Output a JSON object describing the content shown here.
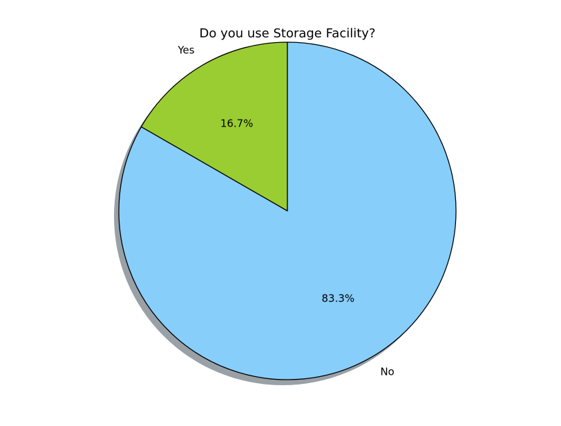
{
  "chart_data": {
    "type": "pie",
    "title": "Do you use Storage Facility?",
    "slices": [
      {
        "label": "Yes",
        "value": 16.7,
        "pct_label": "16.7%",
        "color": "#9ACD32"
      },
      {
        "label": "No",
        "value": 83.3,
        "pct_label": "83.3%",
        "color": "#87CEFA"
      }
    ],
    "start_angle_deg": 90,
    "direction": "counterclockwise",
    "shadow": true,
    "edge_color": "#000000",
    "legend": "none"
  }
}
